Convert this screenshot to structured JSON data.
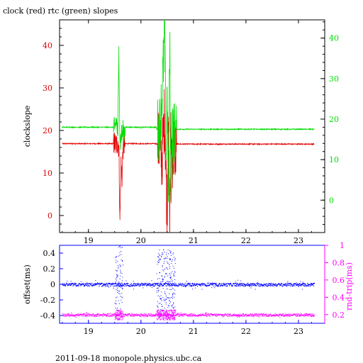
{
  "chart_data": [
    {
      "type": "line",
      "title": "clock (red) rtc (green) slopes",
      "xlabel": "",
      "ylabel": "clockslope",
      "xlim": [
        18.45,
        23.5
      ],
      "ylim": [
        -4,
        46
      ],
      "ylim_right": [
        -8,
        44.5
      ],
      "x_ticks": [
        19,
        20,
        21,
        22,
        23
      ],
      "y_ticks_left": [
        0,
        10,
        20,
        30,
        40
      ],
      "y_ticks_right": [
        0,
        10,
        20,
        30,
        40
      ],
      "colors": {
        "clock": "#e00000",
        "rtc": "#00dd00",
        "axes": "#000000"
      },
      "series": [
        {
          "name": "clock",
          "axis": "left",
          "baseline_before": 16.9,
          "baseline_after": 16.8,
          "points": [
            [
              18.5,
              16.9
            ],
            [
              19.4,
              16.9
            ],
            [
              19.5,
              17.0
            ],
            [
              19.53,
              16.4
            ],
            [
              19.56,
              17.5
            ],
            [
              19.58,
              15.8
            ],
            [
              19.6,
              -1.0
            ],
            [
              19.62,
              12.0
            ],
            [
              19.64,
              9.0
            ],
            [
              19.66,
              16.0
            ],
            [
              19.7,
              16.8
            ],
            [
              20.0,
              16.9
            ],
            [
              20.35,
              16.8
            ],
            [
              20.4,
              13.0
            ],
            [
              20.45,
              24.0
            ],
            [
              20.48,
              9.0
            ],
            [
              20.5,
              1.0
            ],
            [
              20.52,
              22.0
            ],
            [
              20.55,
              -2.0
            ],
            [
              20.57,
              18.0
            ],
            [
              20.6,
              14.0
            ],
            [
              20.65,
              15.8
            ],
            [
              20.7,
              16.7
            ],
            [
              21.0,
              16.8
            ],
            [
              22.0,
              16.8
            ],
            [
              23.3,
              16.8
            ]
          ]
        },
        {
          "name": "rtc",
          "axis": "right",
          "baseline_before": 18.0,
          "baseline_after": 17.5,
          "points": [
            [
              18.5,
              18.0
            ],
            [
              19.4,
              18.0
            ],
            [
              19.5,
              17.5
            ],
            [
              19.53,
              20.0
            ],
            [
              19.56,
              16.0
            ],
            [
              19.58,
              38.0
            ],
            [
              19.6,
              14.0
            ],
            [
              19.62,
              15.5
            ],
            [
              19.64,
              16.5
            ],
            [
              19.7,
              17.6
            ],
            [
              20.0,
              17.6
            ],
            [
              20.35,
              17.5
            ],
            [
              20.4,
              25.0
            ],
            [
              20.45,
              41.0
            ],
            [
              20.48,
              10.0
            ],
            [
              20.5,
              28.0
            ],
            [
              20.52,
              0.0
            ],
            [
              20.55,
              38.0
            ],
            [
              20.57,
              2.0
            ],
            [
              20.6,
              16.5
            ],
            [
              20.65,
              16.8
            ],
            [
              20.7,
              17.5
            ],
            [
              21.0,
              17.6
            ],
            [
              22.0,
              17.5
            ],
            [
              23.3,
              17.5
            ]
          ]
        }
      ]
    },
    {
      "type": "scatter",
      "xlabel": "",
      "ylabel": "offset(ms)",
      "ylabel_right": "rnd-trip(ms)",
      "xlim": [
        18.45,
        23.5
      ],
      "ylim": [
        -0.5,
        0.5
      ],
      "ylim_right": [
        0.1,
        1.0
      ],
      "x_ticks": [
        19,
        20,
        21,
        22,
        23
      ],
      "y_ticks_left": [
        -0.4,
        -0.2,
        0,
        0.2,
        0.4
      ],
      "y_ticks_right": [
        0.2,
        0.4,
        0.6,
        0.8,
        1
      ],
      "colors": {
        "offset": "#0000ff",
        "roundtrip": "#ff00ff",
        "axes": "#0000ff",
        "axes_right": "#ff00ff"
      },
      "series": [
        {
          "name": "offset",
          "axis": "left",
          "baseline": 0.0,
          "noise": 0.02,
          "bursts": [
            {
              "x": [
                19.5,
                19.65
              ],
              "spread": 0.5
            },
            {
              "x": [
                20.3,
                20.65
              ],
              "spread": 0.45
            }
          ]
        },
        {
          "name": "rnd-trip",
          "axis": "right",
          "baseline": 0.2,
          "noise": 0.015,
          "bursts": [
            {
              "x": [
                19.5,
                19.65
              ],
              "spread": 0.08
            },
            {
              "x": [
                20.3,
                20.65
              ],
              "spread": 0.08
            }
          ]
        }
      ]
    }
  ],
  "footer": "2011-09-18  monopole.physics.ubc.ca"
}
